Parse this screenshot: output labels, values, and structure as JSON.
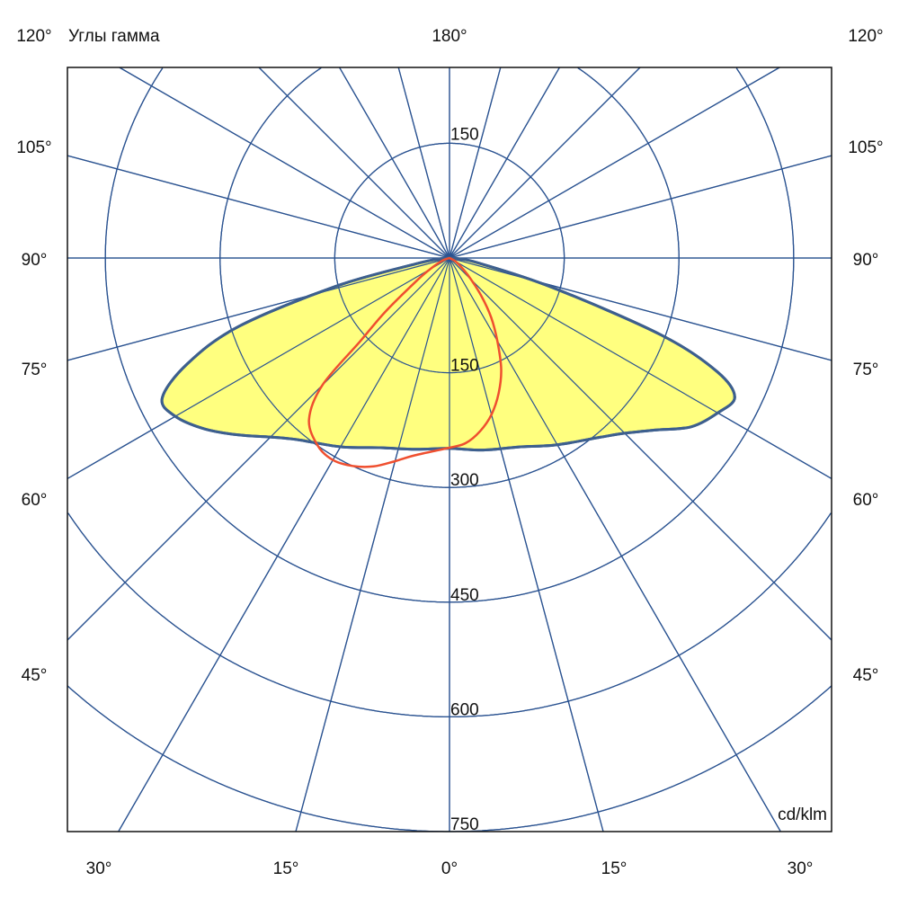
{
  "chart_data": {
    "type": "polar",
    "title": "Углы гамма",
    "unit_label": "cd/klm",
    "radial_ticks": [
      150,
      300,
      450,
      600,
      750
    ],
    "radial_range": [
      0,
      750
    ],
    "angle_step_deg": 15,
    "side_labels": [
      "120°",
      "105°",
      "90°",
      "75°",
      "60°",
      "45°"
    ],
    "top_label": "180°",
    "bottom_labels": [
      "30°",
      "15°",
      "0°",
      "15°",
      "30°"
    ],
    "grid": true,
    "series": [
      {
        "color": "#3d5f8e",
        "fill": "#ffff7f",
        "points": [
          [
            -90,
            0
          ],
          [
            -85,
            12
          ],
          [
            -80,
            45
          ],
          [
            -76,
            154
          ],
          [
            -72,
            290
          ],
          [
            -68,
            370
          ],
          [
            -64,
            418
          ],
          [
            -60,
            414
          ],
          [
            -55,
            390
          ],
          [
            -50,
            360
          ],
          [
            -45,
            331
          ],
          [
            -40,
            310
          ],
          [
            -30,
            285
          ],
          [
            -20,
            264
          ],
          [
            -10,
            254
          ],
          [
            0,
            249
          ],
          [
            10,
            255
          ],
          [
            20,
            263
          ],
          [
            30,
            282
          ],
          [
            40,
            306
          ],
          [
            45,
            324
          ],
          [
            50,
            350
          ],
          [
            55,
            385
          ],
          [
            60,
            405
          ],
          [
            64,
            415
          ],
          [
            67,
            380
          ],
          [
            70,
            295
          ],
          [
            74,
            140
          ],
          [
            80,
            40
          ],
          [
            85,
            12
          ],
          [
            90,
            0
          ]
        ]
      },
      {
        "color": "#ef4f2f",
        "fill": "none",
        "points": [
          [
            -90,
            0
          ],
          [
            -70,
            10
          ],
          [
            -60,
            30
          ],
          [
            -55,
            54
          ],
          [
            -50,
            110
          ],
          [
            -47,
            160
          ],
          [
            -45,
            235
          ],
          [
            -41,
            280
          ],
          [
            -35,
            300
          ],
          [
            -30,
            305
          ],
          [
            -25,
            300
          ],
          [
            -20,
            290
          ],
          [
            -15,
            275
          ],
          [
            -10,
            262
          ],
          [
            0,
            248
          ],
          [
            5,
            243
          ],
          [
            10,
            230
          ],
          [
            15,
            212
          ],
          [
            20,
            188
          ],
          [
            25,
            160
          ],
          [
            30,
            125
          ],
          [
            35,
            95
          ],
          [
            40,
            65
          ],
          [
            45,
            40
          ],
          [
            50,
            25
          ],
          [
            60,
            10
          ],
          [
            90,
            0
          ]
        ]
      }
    ]
  }
}
